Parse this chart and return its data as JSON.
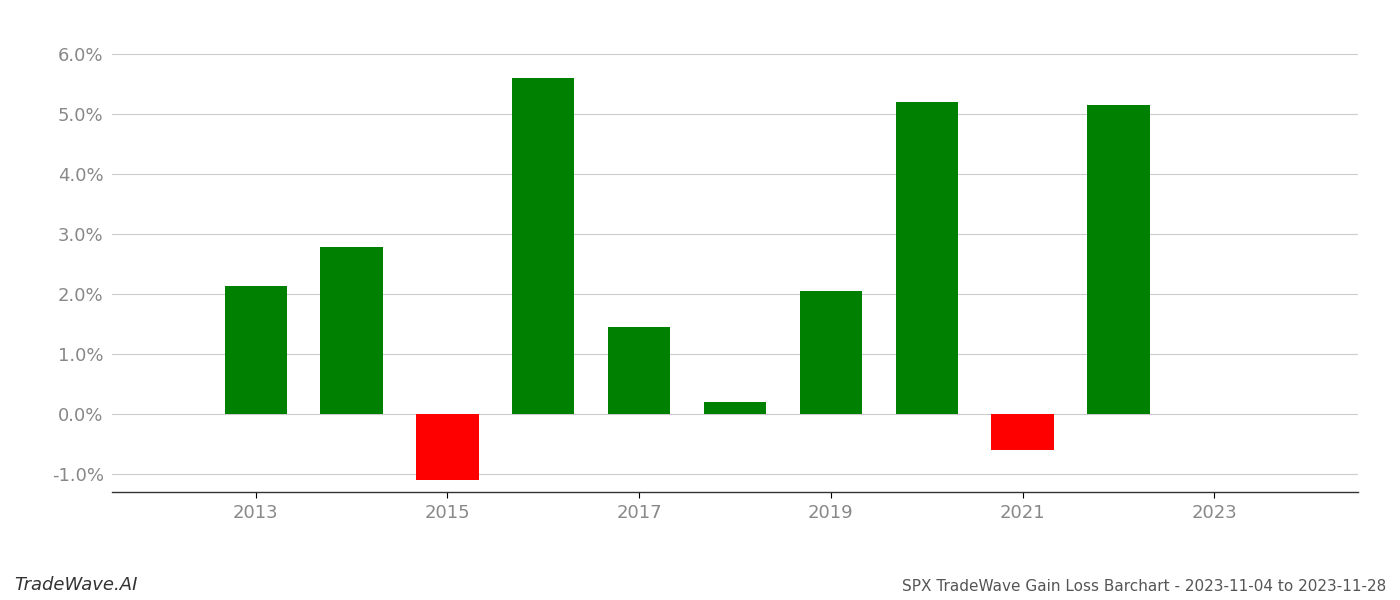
{
  "years": [
    2013,
    2014,
    2015,
    2016,
    2017,
    2018,
    2019,
    2020,
    2021,
    2022
  ],
  "values": [
    0.0213,
    0.0278,
    -0.011,
    0.056,
    0.0145,
    0.002,
    0.0205,
    0.052,
    -0.006,
    0.0515
  ],
  "colors": [
    "#008000",
    "#008000",
    "#ff0000",
    "#008000",
    "#008000",
    "#008000",
    "#008000",
    "#008000",
    "#ff0000",
    "#008000"
  ],
  "title": "SPX TradeWave Gain Loss Barchart - 2023-11-04 to 2023-11-28",
  "watermark": "TradeWave.AI",
  "ylim_min": -0.013,
  "ylim_max": 0.062,
  "background_color": "#ffffff",
  "grid_color": "#cccccc",
  "axis_label_color": "#888888",
  "bar_width": 0.65,
  "xticks": [
    2013,
    2015,
    2017,
    2019,
    2021,
    2023
  ],
  "xlim_min": 2011.5,
  "xlim_max": 2024.5
}
